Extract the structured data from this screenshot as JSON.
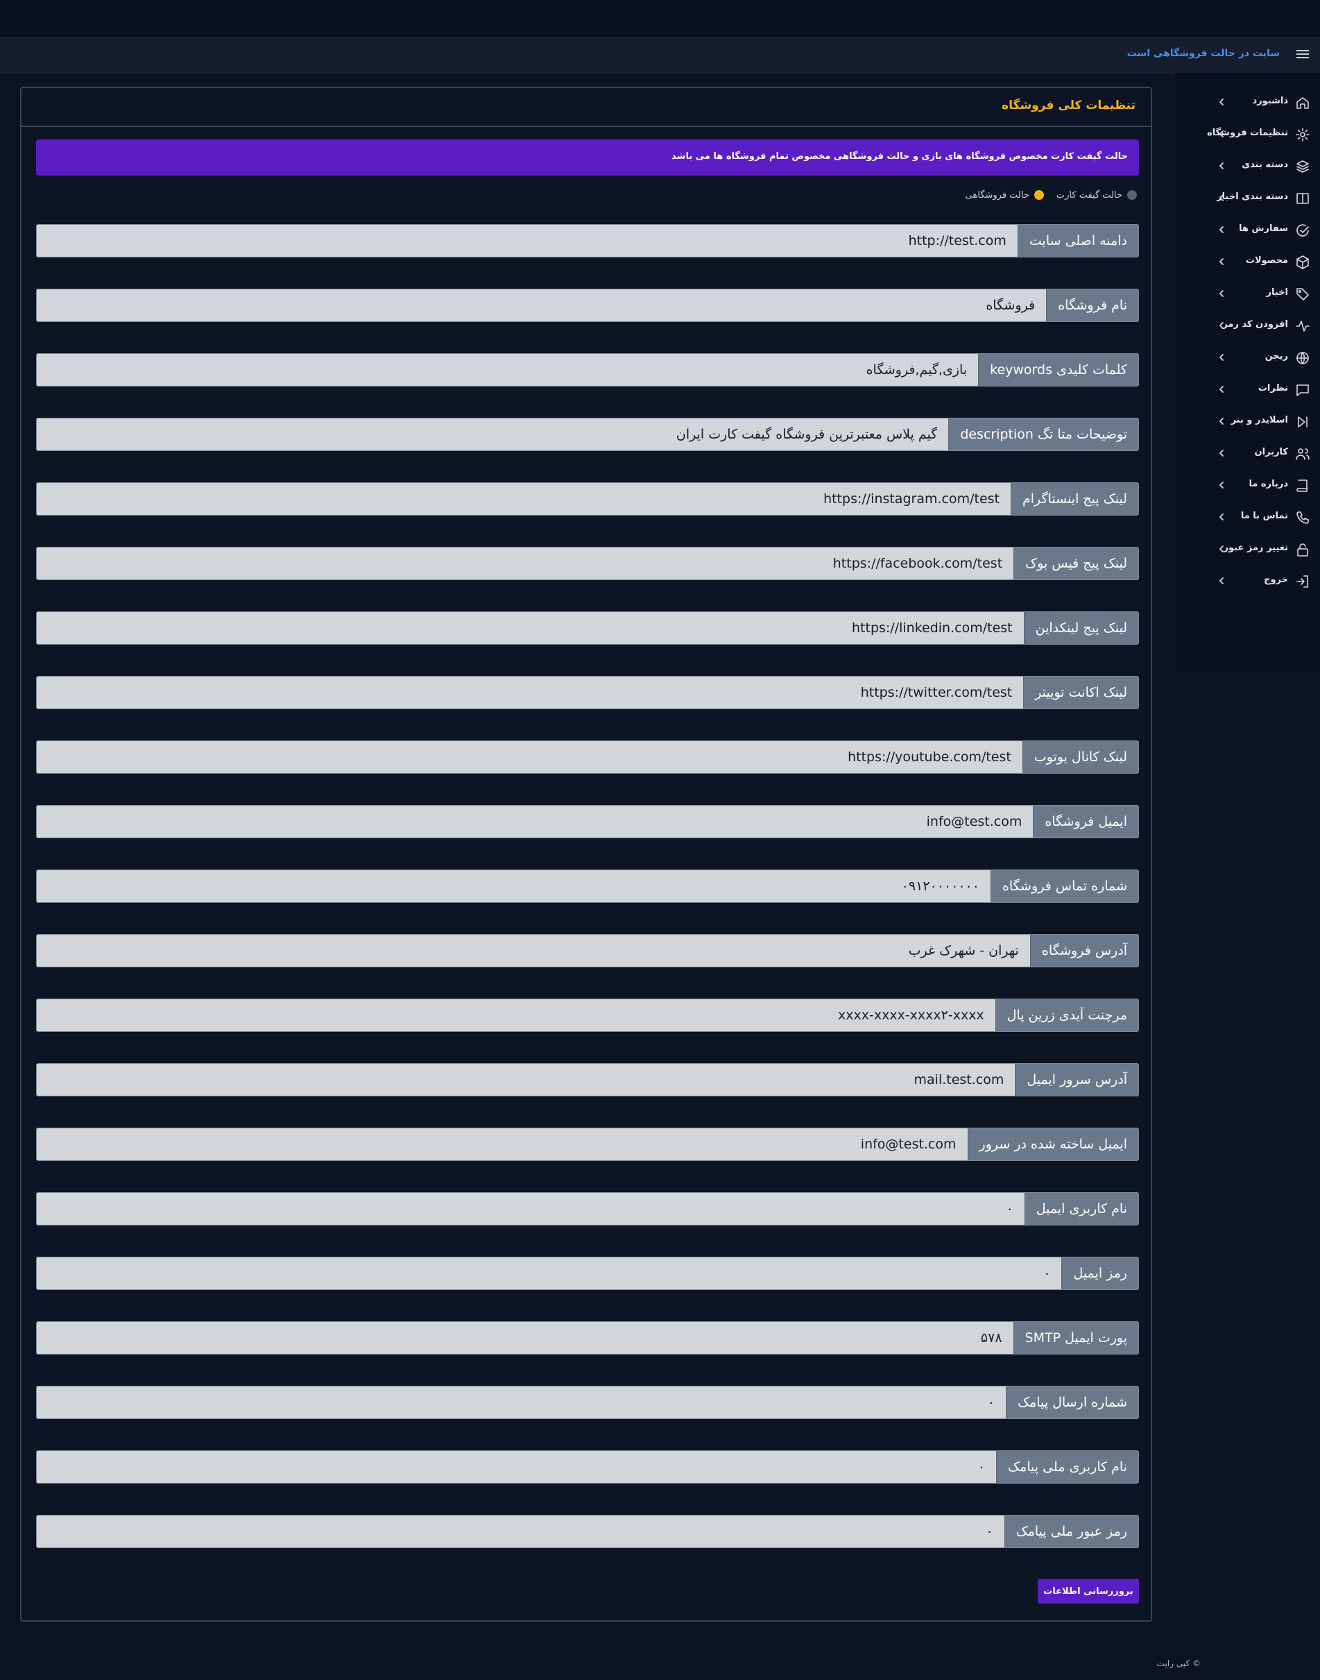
{
  "topbar": {
    "title": "سایت در حالت فروشگاهی است",
    "menu_icon": "hamburger-icon"
  },
  "sidebar": {
    "items": [
      {
        "label": "داشبورد",
        "icon": "home-icon"
      },
      {
        "label": "تنظیمات فروشگاه",
        "icon": "gear-icon"
      },
      {
        "label": "دسته بندی",
        "icon": "layers-icon"
      },
      {
        "label": "دسته بندی اخبار",
        "icon": "columns-icon"
      },
      {
        "label": "سفارش ها",
        "icon": "check-circle-icon"
      },
      {
        "label": "محصولات",
        "icon": "box-icon"
      },
      {
        "label": "اخبار",
        "icon": "tag-icon"
      },
      {
        "label": "افزودن کد رمز",
        "icon": "activity-icon"
      },
      {
        "label": "ریجن",
        "icon": "globe-icon"
      },
      {
        "label": "نظرات",
        "icon": "message-icon"
      },
      {
        "label": "اسلایدر و بنر",
        "icon": "skip-icon"
      },
      {
        "label": "کاربران",
        "icon": "users-icon"
      },
      {
        "label": "درباره ما",
        "icon": "book-icon"
      },
      {
        "label": "تماس با ما",
        "icon": "phone-icon"
      },
      {
        "label": "تغییر رمز عبور",
        "icon": "lock-icon"
      },
      {
        "label": "خروج",
        "icon": "logout-icon"
      }
    ]
  },
  "panel": {
    "title": "تنظیمات کلی فروشگاه",
    "alert": "حالت گیفت کارت مخصوص فروشگاه های بازی و حالت فروشگاهی مخصوص تمام فروشگاه ها می باشد",
    "modes": [
      {
        "label": "حالت گیفت کارت",
        "selected": false
      },
      {
        "label": "حالت فروشگاهی",
        "selected": true
      }
    ],
    "fields": [
      {
        "label": "دامنه اصلی سایت",
        "value": "http://test.com"
      },
      {
        "label": "نام فروشگاه",
        "value": "فروشگاه"
      },
      {
        "label": "کلمات کلیدی keywords",
        "value": "بازی,گیم,فروشگاه"
      },
      {
        "label": "توضیحات متا تگ description",
        "value": "گیم پلاس معتبرترین فروشگاه گیفت کارت ایران"
      },
      {
        "label": "لینک پیج اینستاگرام",
        "value": "https://instagram.com/test"
      },
      {
        "label": "لینک پیج فیس بوک",
        "value": "https://facebook.com/test"
      },
      {
        "label": "لینک پیج لینکداین",
        "value": "https://linkedin.com/test"
      },
      {
        "label": "لینک اکانت توییتر",
        "value": "https://twitter.com/test"
      },
      {
        "label": "لینک کانال یوتوب",
        "value": "https://youtube.com/test"
      },
      {
        "label": "ایمیل فروشگاه",
        "value": "info@test.com"
      },
      {
        "label": "شماره تماس فروشگاه",
        "value": "۰۹۱۲۰۰۰۰۰۰۰"
      },
      {
        "label": "آدرس فروشگاه",
        "value": "تهران - شهرک غرب"
      },
      {
        "label": "مرچنت آیدی زرین پال",
        "value": "xxxx-xxxx-xxxx۲-xxxx"
      },
      {
        "label": "آدرس سرور ایمیل",
        "value": "mail.test.com"
      },
      {
        "label": "ایمیل ساخته شده در سرور",
        "value": "info@test.com"
      },
      {
        "label": "نام کاربری ایمیل",
        "value": "۰"
      },
      {
        "label": "رمز ایمیل",
        "value": "۰"
      },
      {
        "label": "پورت ایمیل SMTP",
        "value": "۵۷۸"
      },
      {
        "label": "شماره ارسال پیامک",
        "value": "۰"
      },
      {
        "label": "نام کاربری ملی پیامک",
        "value": "۰"
      },
      {
        "label": "رمز عبور ملی پیامک",
        "value": "۰"
      }
    ],
    "submit_label": "بروزرسانی اطلاعات"
  },
  "footer": {
    "copyright": "© کپی رایت"
  }
}
